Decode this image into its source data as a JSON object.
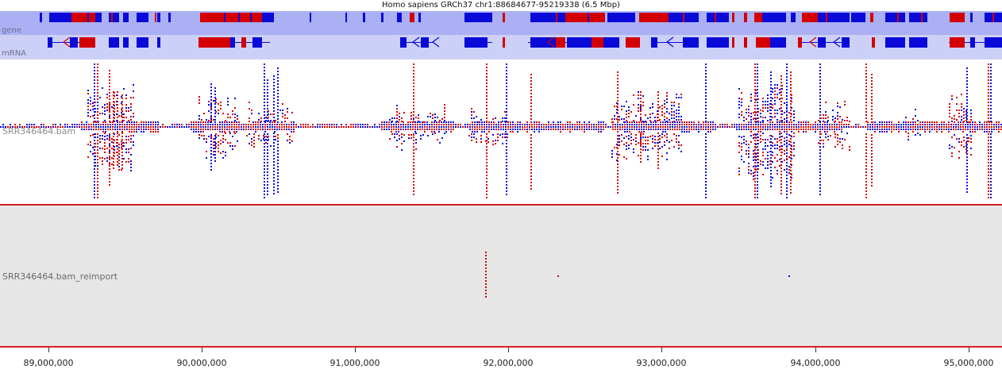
{
  "title": "Homo sapiens GRCh37 chr1:88684677-95219338 (6.5 Mbp)",
  "region": {
    "start": 88684677,
    "end": 95219338
  },
  "tracks": {
    "gene_label": "gene",
    "mrna_label": "mRNA",
    "bam_label": "SRR346464.bam",
    "reimport_label": "SRR346464.bam_reimport"
  },
  "colors": {
    "forward": "#d40000",
    "reverse": "#0a0ad8",
    "separator": "#d62020"
  },
  "axis": {
    "ticks": [
      {
        "pos": 89000000,
        "label": "89,000,000"
      },
      {
        "pos": 90000000,
        "label": "90,000,000"
      },
      {
        "pos": 91000000,
        "label": "91,000,000"
      },
      {
        "pos": 92000000,
        "label": "92,000,000"
      },
      {
        "pos": 93000000,
        "label": "93,000,000"
      },
      {
        "pos": 94000000,
        "label": "94,000,000"
      },
      {
        "pos": 95000000,
        "label": "95,000,000"
      }
    ]
  }
}
